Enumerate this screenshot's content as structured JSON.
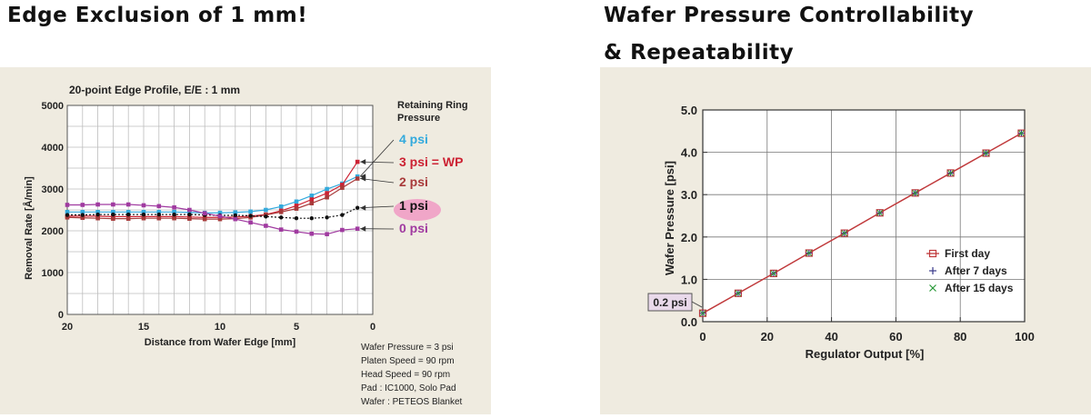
{
  "headings": {
    "left": "Edge Exclusion of 1 mm!",
    "right_line1": "Wafer Pressure Controllability",
    "right_line2": "& Repeatability"
  },
  "left_chart": {
    "title": "20-point Edge Profile, E/E : 1 mm",
    "xlabel": "Distance from Wafer Edge [mm]",
    "ylabel": "Removal Rate [Å/min]",
    "legend_title_1": "Retaining Ring",
    "legend_title_2": "Pressure",
    "conditions": [
      "Wafer Pressure = 3 psi",
      "Platen Speed = 90 rpm",
      "Head Speed = 90 rpm",
      "Pad : IC1000, Solo Pad",
      "Wafer : PETEOS Blanket"
    ]
  },
  "right_chart": {
    "xlabel": "Regulator Output [%]",
    "ylabel": "Wafer Pressure [psi]",
    "callout": "0.2 psi"
  },
  "colors": {
    "p4": "#33aadd",
    "p3": "#cc2233",
    "p2": "#a83a3a",
    "p1": "#111111",
    "p0": "#a03aa0",
    "first": "#c0393b",
    "after7": "#3a3a8a",
    "after15": "#2a9a3a"
  },
  "chart_data": [
    {
      "type": "line",
      "title": "20-point Edge Profile, E/E : 1 mm",
      "xlabel": "Distance from Wafer Edge [mm]",
      "ylabel": "Removal Rate [Å/min]",
      "xlim": [
        20,
        0
      ],
      "ylim": [
        0,
        5000
      ],
      "xticks": [
        20,
        15,
        10,
        5,
        0
      ],
      "yticks": [
        0,
        1000,
        2000,
        3000,
        4000,
        5000
      ],
      "grid": true,
      "x": [
        20,
        19,
        18,
        17,
        16,
        15,
        14,
        13,
        12,
        11,
        10,
        9,
        8,
        7,
        6,
        5,
        4,
        3,
        2,
        1
      ],
      "series": [
        {
          "name": "4 psi",
          "color_key": "p4",
          "values": [
            2450,
            2450,
            2450,
            2450,
            2450,
            2450,
            2450,
            2450,
            2440,
            2430,
            2430,
            2440,
            2460,
            2500,
            2580,
            2700,
            2840,
            3000,
            3130,
            3300
          ]
        },
        {
          "name": "3 psi = WP",
          "color_key": "p3",
          "values": [
            2350,
            2350,
            2350,
            2340,
            2340,
            2340,
            2340,
            2340,
            2330,
            2320,
            2320,
            2330,
            2350,
            2390,
            2480,
            2600,
            2750,
            2900,
            3100,
            3650
          ]
        },
        {
          "name": "2 psi",
          "color_key": "p2",
          "values": [
            2320,
            2310,
            2300,
            2290,
            2290,
            2300,
            2300,
            2300,
            2290,
            2280,
            2280,
            2290,
            2320,
            2380,
            2450,
            2530,
            2660,
            2800,
            3030,
            3250
          ]
        },
        {
          "name": "1 psi",
          "color_key": "p1",
          "values": [
            2380,
            2380,
            2390,
            2390,
            2390,
            2390,
            2390,
            2390,
            2390,
            2380,
            2370,
            2370,
            2360,
            2340,
            2320,
            2300,
            2300,
            2320,
            2380,
            2550
          ]
        },
        {
          "name": "0 psi",
          "color_key": "p0",
          "values": [
            2620,
            2620,
            2630,
            2630,
            2630,
            2610,
            2590,
            2560,
            2500,
            2420,
            2350,
            2280,
            2200,
            2120,
            2030,
            1980,
            1930,
            1920,
            2020,
            2050
          ]
        }
      ]
    },
    {
      "type": "line",
      "xlabel": "Regulator Output [%]",
      "ylabel": "Wafer Pressure [psi]",
      "xlim": [
        0,
        100
      ],
      "ylim": [
        0,
        5.0
      ],
      "xticks": [
        0,
        20,
        40,
        60,
        80,
        100
      ],
      "yticks": [
        "0.0",
        "1.0",
        "2.0",
        "3.0",
        "4.0",
        "5.0"
      ],
      "grid": true,
      "legend": "bottom-right",
      "annotation": "0.2 psi",
      "x": [
        0,
        11,
        22,
        33,
        44,
        55,
        66,
        77,
        88,
        99
      ],
      "series": [
        {
          "name": "First day",
          "color_key": "first",
          "marker": "square",
          "values": [
            0.2,
            0.67,
            1.14,
            1.62,
            2.09,
            2.57,
            3.04,
            3.51,
            3.98,
            4.45
          ]
        },
        {
          "name": "After 7 days",
          "color_key": "after7",
          "marker": "plus",
          "values": [
            0.2,
            0.67,
            1.14,
            1.62,
            2.09,
            2.57,
            3.04,
            3.51,
            3.98,
            4.45
          ]
        },
        {
          "name": "After 15 days",
          "color_key": "after15",
          "marker": "cross",
          "values": [
            0.2,
            0.67,
            1.14,
            1.62,
            2.09,
            2.57,
            3.04,
            3.51,
            3.98,
            4.45
          ]
        }
      ]
    }
  ]
}
